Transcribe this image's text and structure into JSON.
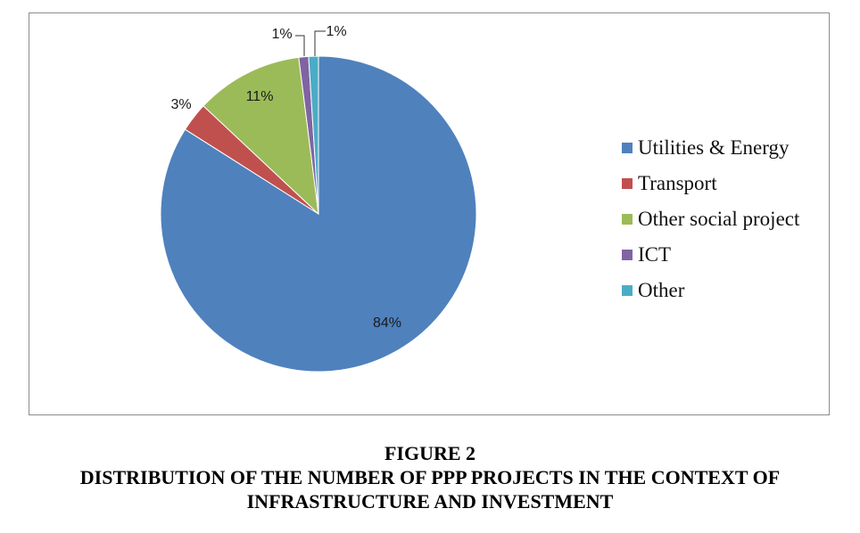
{
  "chart_data": {
    "type": "pie",
    "categories": [
      "Utilities & Energy",
      "Transport",
      "Other social project",
      "ICT",
      "Other"
    ],
    "values": [
      84,
      3,
      11,
      1,
      1
    ],
    "data_labels": [
      "84%",
      "3%",
      "11%",
      "1%",
      "1%"
    ],
    "colors": [
      "#4F81BD",
      "#C0504D",
      "#9BBB59",
      "#8064A2",
      "#4BACC6"
    ],
    "legend_position": "right",
    "start": "top, clockwise"
  },
  "caption": {
    "figure": "FIGURE 2",
    "line1": "DISTRIBUTION OF THE NUMBER OF PPP PROJECTS IN THE CONTEXT OF",
    "line2": "INFRASTRUCTURE AND INVESTMENT"
  }
}
